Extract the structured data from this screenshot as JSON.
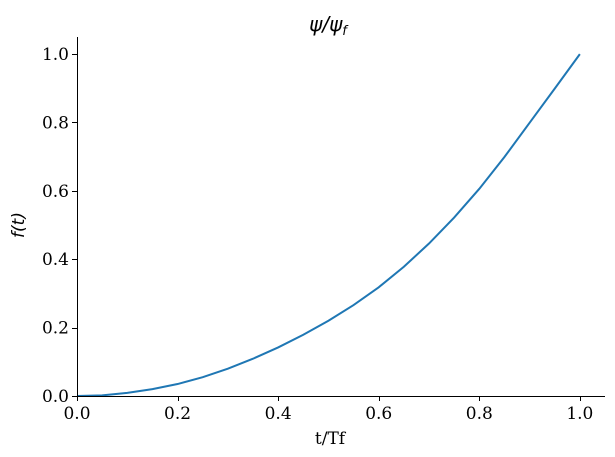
{
  "chart_data": {
    "type": "line",
    "title": "ψ/ψ",
    "title_subscript": "f",
    "xlabel": "t/Tf",
    "ylabel": "f(t)",
    "xlim": [
      0.0,
      1.05
    ],
    "ylim": [
      0.0,
      1.05
    ],
    "x_ticks": [
      0.0,
      0.2,
      0.4,
      0.6,
      0.8,
      1.0
    ],
    "x_tick_labels": [
      "0.0",
      "0.2",
      "0.4",
      "0.6",
      "0.8",
      "1.0"
    ],
    "y_ticks": [
      0.0,
      0.2,
      0.4,
      0.6,
      0.8,
      1.0
    ],
    "y_tick_labels": [
      "0.0",
      "0.2",
      "0.4",
      "0.6",
      "0.8",
      "1.0"
    ],
    "grid": false,
    "series": [
      {
        "color": "#1f77b4",
        "x": [
          0.0,
          0.05,
          0.1,
          0.15,
          0.2,
          0.25,
          0.3,
          0.35,
          0.4,
          0.45,
          0.5,
          0.55,
          0.6,
          0.65,
          0.7,
          0.75,
          0.8,
          0.85,
          0.9,
          0.95,
          1.0
        ],
        "y": [
          0.0,
          0.002,
          0.009,
          0.02,
          0.035,
          0.055,
          0.08,
          0.109,
          0.142,
          0.179,
          0.22,
          0.266,
          0.318,
          0.378,
          0.446,
          0.522,
          0.606,
          0.699,
          0.799,
          0.899,
          1.0
        ]
      }
    ]
  }
}
